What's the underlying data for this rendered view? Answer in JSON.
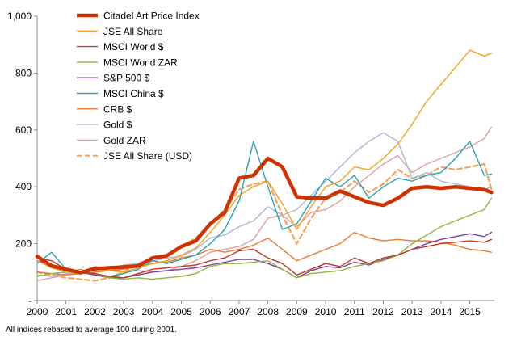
{
  "chart_data": {
    "type": "line",
    "x": [
      2000,
      2000.5,
      2001,
      2001.5,
      2002,
      2002.5,
      2003,
      2003.5,
      2004,
      2004.5,
      2005,
      2005.5,
      2006,
      2006.5,
      2007,
      2007.5,
      2008,
      2008.5,
      2009,
      2009.5,
      2010,
      2010.5,
      2011,
      2011.5,
      2012,
      2012.5,
      2013,
      2013.5,
      2014,
      2014.5,
      2015,
      2015.5,
      2015.75
    ],
    "xticks": [
      "2000",
      "2001",
      "2002",
      "2003",
      "2004",
      "2005",
      "2006",
      "2007",
      "2008",
      "2009",
      "2010",
      "2011",
      "2012",
      "2013",
      "2014",
      "2015"
    ],
    "yticks": [
      "-",
      "200",
      "400",
      "600",
      "800",
      "1,000"
    ],
    "ylim": [
      0,
      1000
    ],
    "xlim": [
      2000,
      2015.85
    ],
    "grid": false,
    "legend": "top-left",
    "footnote": "All indices rebased to average 100 during 2001.",
    "series": [
      {
        "name": "Citadel Art Price Index",
        "color": "#cc3300",
        "width": 4.5,
        "dash": "",
        "values": [
          155,
          122,
          110,
          98,
          112,
          115,
          118,
          122,
          150,
          158,
          190,
          210,
          270,
          310,
          430,
          440,
          500,
          470,
          365,
          360,
          360,
          385,
          365,
          345,
          335,
          360,
          395,
          400,
          395,
          400,
          395,
          390,
          380
        ]
      },
      {
        "name": "JSE All Share",
        "color": "#f7a020",
        "width": 1.4,
        "dash": "",
        "values": [
          140,
          115,
          100,
          95,
          110,
          105,
          100,
          115,
          130,
          140,
          160,
          185,
          240,
          300,
          370,
          400,
          420,
          340,
          250,
          330,
          400,
          420,
          470,
          460,
          500,
          550,
          620,
          700,
          760,
          820,
          880,
          860,
          870
        ]
      },
      {
        "name": "MSCI World $",
        "color": "#c0392b",
        "width": 1.4,
        "dash": "",
        "values": [
          150,
          140,
          110,
          100,
          95,
          85,
          80,
          95,
          110,
          115,
          120,
          125,
          140,
          150,
          175,
          180,
          150,
          130,
          90,
          110,
          130,
          120,
          150,
          130,
          150,
          160,
          180,
          190,
          200,
          205,
          210,
          205,
          215
        ]
      },
      {
        "name": "MSCI World ZAR",
        "color": "#8db83b",
        "width": 1.4,
        "dash": "",
        "values": [
          85,
          95,
          100,
          110,
          95,
          80,
          75,
          80,
          75,
          80,
          85,
          95,
          120,
          130,
          130,
          135,
          140,
          110,
          80,
          95,
          100,
          105,
          120,
          130,
          140,
          160,
          200,
          230,
          260,
          280,
          300,
          320,
          360
        ]
      },
      {
        "name": "S&P 500 $",
        "color": "#7b3f99",
        "width": 1.4,
        "dash": "",
        "values": [
          140,
          125,
          105,
          100,
          90,
          80,
          80,
          90,
          100,
          105,
          110,
          115,
          125,
          135,
          145,
          145,
          130,
          110,
          80,
          105,
          120,
          115,
          135,
          125,
          145,
          160,
          180,
          200,
          215,
          225,
          235,
          225,
          240
        ]
      },
      {
        "name": "MSCI China $",
        "color": "#2aa1b6",
        "width": 1.4,
        "dash": "",
        "values": [
          130,
          170,
          110,
          100,
          90,
          85,
          95,
          110,
          140,
          130,
          145,
          160,
          200,
          250,
          350,
          560,
          400,
          250,
          270,
          350,
          430,
          400,
          440,
          360,
          400,
          430,
          420,
          440,
          450,
          500,
          560,
          440,
          445
        ]
      },
      {
        "name": "CRB $",
        "color": "#f0782a",
        "width": 1.4,
        "dash": "",
        "values": [
          100,
          95,
          90,
          95,
          100,
          105,
          110,
          120,
          130,
          135,
          150,
          160,
          180,
          170,
          180,
          195,
          220,
          180,
          140,
          160,
          180,
          200,
          240,
          220,
          210,
          215,
          210,
          210,
          205,
          195,
          180,
          175,
          170
        ]
      },
      {
        "name": "Gold $",
        "color": "#a9b8d6",
        "width": 1.4,
        "dash": "",
        "values": [
          90,
          85,
          95,
          100,
          110,
          115,
          125,
          130,
          140,
          150,
          155,
          180,
          220,
          230,
          260,
          280,
          330,
          300,
          320,
          370,
          420,
          470,
          520,
          560,
          590,
          560,
          430,
          450,
          420,
          410,
          400,
          390,
          400
        ]
      },
      {
        "name": "Gold ZAR",
        "color": "#e0a0a0",
        "width": 1.4,
        "dash": "",
        "values": [
          70,
          80,
          90,
          100,
          120,
          115,
          100,
          105,
          100,
          105,
          120,
          140,
          170,
          180,
          190,
          215,
          290,
          300,
          260,
          310,
          320,
          350,
          400,
          440,
          480,
          510,
          450,
          480,
          500,
          520,
          540,
          570,
          610
        ]
      },
      {
        "name": "JSE All Share (USD)",
        "color": "#f5a25d",
        "width": 2.2,
        "dash": "6,4",
        "values": [
          100,
          90,
          80,
          75,
          70,
          80,
          100,
          130,
          150,
          160,
          190,
          220,
          270,
          320,
          390,
          410,
          420,
          300,
          200,
          290,
          360,
          380,
          420,
          380,
          410,
          460,
          430,
          440,
          470,
          460,
          470,
          480,
          390
        ]
      }
    ]
  }
}
